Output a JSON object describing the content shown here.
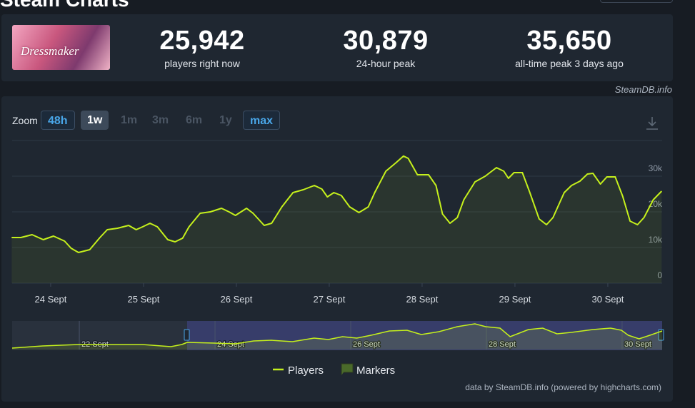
{
  "header": {
    "title": "Steam Charts"
  },
  "game": {
    "logo_text": "Dressmaker"
  },
  "stats": [
    {
      "value": "25,942",
      "label": "players right now"
    },
    {
      "value": "30,879",
      "label": "24-hour peak"
    },
    {
      "value": "35,650",
      "label": "all-time peak 3 days ago"
    }
  ],
  "source": "SteamDB.info",
  "zoom": {
    "label": "Zoom",
    "options": [
      "48h",
      "1w",
      "1m",
      "3m",
      "6m",
      "1y",
      "max"
    ]
  },
  "chart_data": [
    {
      "type": "line",
      "x": [
        23.58,
        23.68,
        23.8,
        23.92,
        24.03,
        24.15,
        24.22,
        24.3,
        24.42,
        24.53,
        24.61,
        24.72,
        24.84,
        24.92,
        24.99,
        25.07,
        25.15,
        25.26,
        25.34,
        25.42,
        25.49,
        25.61,
        25.72,
        25.84,
        25.92,
        25.99,
        26.11,
        26.18,
        26.3,
        26.38,
        26.49,
        26.61,
        26.72,
        26.84,
        26.92,
        26.98,
        27.05,
        27.13,
        27.22,
        27.32,
        27.42,
        27.49,
        27.61,
        27.72,
        27.8,
        27.85,
        27.95,
        28.07,
        28.15,
        28.22,
        28.3,
        28.38,
        28.45,
        28.57,
        28.68,
        28.8,
        28.88,
        28.93,
        28.99,
        29.08,
        29.16,
        29.26,
        29.34,
        29.41,
        29.53,
        29.61,
        29.7,
        29.78,
        29.84,
        29.92,
        29.99,
        30.08,
        30.16,
        30.24,
        30.32,
        30.39,
        30.49,
        30.58
      ],
      "series": [
        {
          "name": "Players",
          "color": "#c5f01c",
          "values": [
            12800,
            12800,
            13600,
            12200,
            13200,
            11800,
            9800,
            8600,
            9400,
            12800,
            15000,
            15400,
            16200,
            15000,
            15800,
            16800,
            15800,
            12200,
            11600,
            12600,
            15800,
            19600,
            20000,
            21000,
            20000,
            19000,
            21000,
            19600,
            16200,
            16800,
            21400,
            25400,
            26200,
            27400,
            26400,
            24200,
            25400,
            24600,
            21400,
            19800,
            21400,
            25400,
            31400,
            33800,
            35650,
            35000,
            30400,
            30400,
            27400,
            19400,
            16800,
            18400,
            23400,
            28400,
            30000,
            32400,
            31400,
            29400,
            31000,
            31000,
            25400,
            18000,
            16400,
            18400,
            25400,
            27400,
            28600,
            30600,
            30800,
            27800,
            29800,
            29800,
            24400,
            17400,
            16400,
            18400,
            23400,
            25800
          ]
        }
      ],
      "markers": {
        "name": "Markers",
        "color": "#4a6a2a"
      },
      "xlim": [
        23.585,
        30.585
      ],
      "xticks": [
        {
          "value": 24,
          "label": "24 Sept"
        },
        {
          "value": 25,
          "label": "25 Sept"
        },
        {
          "value": 26,
          "label": "26 Sept"
        },
        {
          "value": 27,
          "label": "27 Sept"
        },
        {
          "value": 28,
          "label": "28 Sept"
        },
        {
          "value": 29,
          "label": "29 Sept"
        },
        {
          "value": 30,
          "label": "30 Sept"
        }
      ],
      "ylim": [
        0,
        40000
      ],
      "yticks": [
        0,
        {
          "value": 10000,
          "label": "10k"
        },
        {
          "value": 20000,
          "label": "20k"
        },
        {
          "value": 30000,
          "label": "30k"
        }
      ],
      "grid": true
    },
    {
      "type": "area",
      "x": [
        21.01,
        21.46,
        21.99,
        22.93,
        23.35,
        23.51,
        23.59,
        23.99,
        24.3,
        24.57,
        24.83,
        25.14,
        25.46,
        25.67,
        25.88,
        26.09,
        26.3,
        26.57,
        26.83,
        27.04,
        27.3,
        27.57,
        27.83,
        27.99,
        28.2,
        28.35,
        28.62,
        28.83,
        29.04,
        29.25,
        29.57,
        29.83,
        29.99,
        30.09,
        30.25,
        30.41,
        30.59
      ],
      "series": [
        {
          "color": "#c5f01c",
          "values": [
            2000,
            5000,
            7000,
            7000,
            4000,
            7000,
            10000,
            9000,
            8000,
            12000,
            13000,
            11000,
            16000,
            14000,
            18000,
            16000,
            20000,
            26000,
            27000,
            21000,
            25000,
            32000,
            36000,
            32000,
            30000,
            18000,
            28000,
            30000,
            22000,
            24000,
            28000,
            30000,
            27000,
            20000,
            15000,
            20000,
            26000
          ]
        }
      ],
      "xlim": [
        21.01,
        30.59
      ],
      "xticks": [
        {
          "value": 22,
          "label": "22 Sept"
        },
        {
          "value": 24,
          "label": "24 Sept"
        },
        {
          "value": 26,
          "label": "26 Sept"
        },
        {
          "value": 28,
          "label": "28 Sept"
        },
        {
          "value": 30,
          "label": "30 Sept"
        }
      ],
      "ylim": [
        0,
        40000
      ]
    }
  ],
  "credits": "data by SteamDB.info (powered by highcharts.com)"
}
